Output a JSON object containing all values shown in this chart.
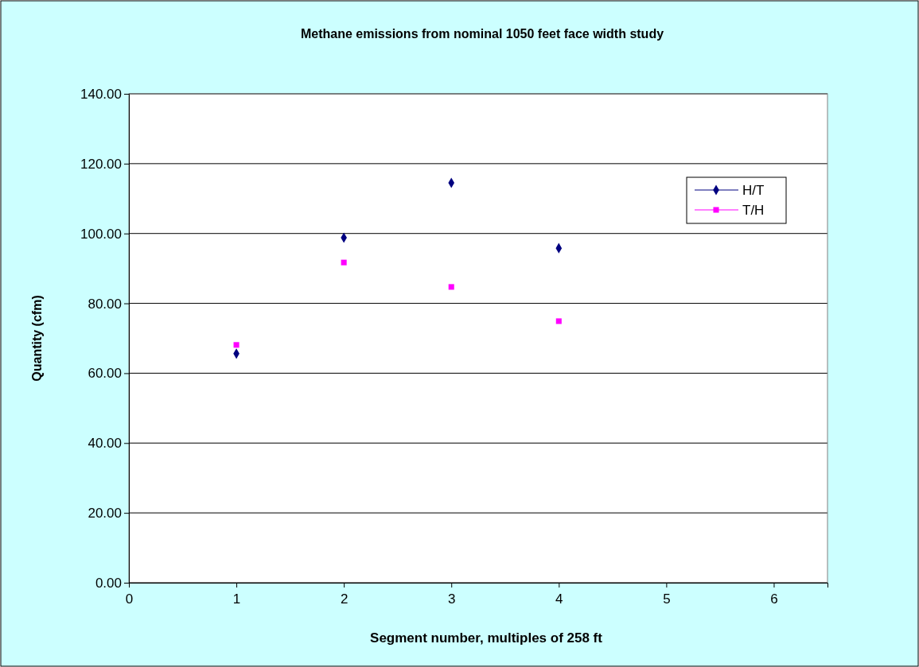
{
  "chart_data": {
    "type": "scatter",
    "title": "Methane emissions from nominal 1050 feet face width study",
    "xlabel": "Segment  number, multiples of 258 ft",
    "ylabel": "Quantity (cfm)",
    "x": [
      1,
      2,
      3,
      4
    ],
    "series": [
      {
        "name": "H/T",
        "color": "#000080",
        "marker": "diamond",
        "values": [
          65.6,
          98.8,
          114.5,
          95.8
        ]
      },
      {
        "name": "T/H",
        "color": "#ff00ff",
        "marker": "square",
        "values": [
          68.1,
          91.7,
          84.7,
          74.9
        ]
      }
    ],
    "xlim": [
      0,
      6.5
    ],
    "xticks": [
      0,
      1,
      2,
      3,
      4,
      5,
      6
    ],
    "ylim": [
      0,
      140
    ],
    "yticks": [
      {
        "value": 0,
        "label": "0.00"
      },
      {
        "value": 20,
        "label": "20.00"
      },
      {
        "value": 40,
        "label": "40.00"
      },
      {
        "value": 60,
        "label": "60.00"
      },
      {
        "value": 80,
        "label": "80.00"
      },
      {
        "value": 100,
        "label": "100.00"
      },
      {
        "value": 120,
        "label": "120.00"
      },
      {
        "value": 140,
        "label": "140.00"
      }
    ],
    "grid": "y",
    "legend": "top right"
  }
}
